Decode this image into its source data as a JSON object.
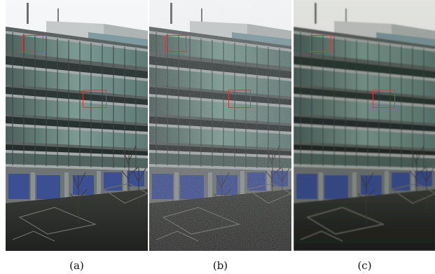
{
  "figure": {
    "panels": [
      {
        "id": "a",
        "caption": "(a)",
        "variant": "sharp"
      },
      {
        "id": "b",
        "caption": "(b)",
        "variant": "noisy"
      },
      {
        "id": "c",
        "caption": "(c)",
        "variant": "smooth"
      }
    ],
    "colors": {
      "sky": "#eef1f3",
      "concrete": "#9a9e9f",
      "glass": "#6f8f88",
      "glass_dark": "#2e3c3a",
      "ground": "#2b2d2a",
      "blue_panels": "#3c4f92",
      "roi": "#d63a3a"
    }
  }
}
